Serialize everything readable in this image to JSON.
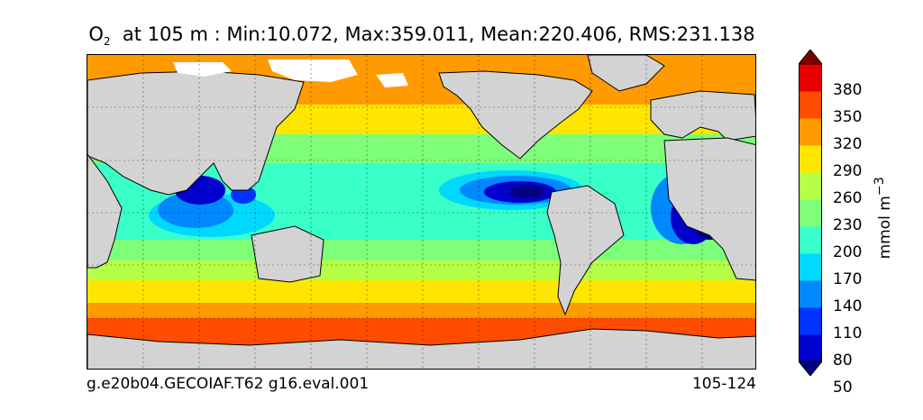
{
  "title": {
    "species": "O",
    "subscript": "2",
    "rest": "at 105 m : Min:10.072, Max:359.011, Mean:220.406, RMS:231.138"
  },
  "footer": {
    "left": "g.e20b04.GECOIAF.T62 g16.eval.001",
    "right": "105-124"
  },
  "colorbar": {
    "unit_label": "mmol m",
    "unit_exponent": "−3",
    "ticks": [
      "380",
      "350",
      "320",
      "290",
      "260",
      "230",
      "200",
      "170",
      "140",
      "110",
      "80",
      "50"
    ],
    "colors": [
      "#000080",
      "#0000cd",
      "#0033ff",
      "#0088ff",
      "#00d8ff",
      "#39ffc8",
      "#7dff7a",
      "#b6ff47",
      "#ffe600",
      "#ff9b00",
      "#ff4c00",
      "#e60000",
      "#800000"
    ]
  },
  "map": {
    "land_color": "#d3d3d3",
    "ice_color": "#ffffff",
    "graticule": "dotted"
  }
}
